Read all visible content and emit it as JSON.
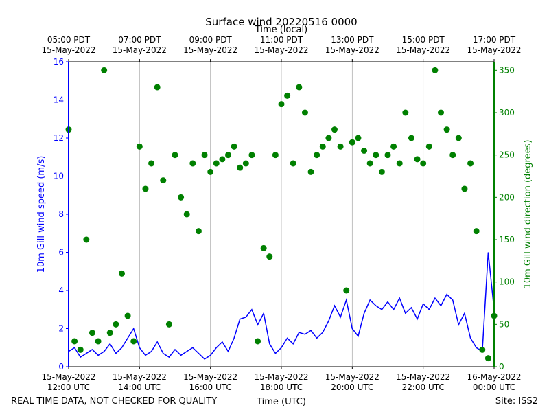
{
  "chart_data": {
    "type": "line",
    "title": "Surface wind 20220516 0000",
    "x2label": "Time (local)",
    "xlabel": "Time (UTC)",
    "ylabel": "10m Gill wind speed (m/s)",
    "y2label": "10m Gill wind direction (degrees)",
    "footer_left": "REAL TIME DATA, NOT CHECKED FOR QUALITY",
    "footer_right": "Site: ISS2",
    "grid": "x",
    "xlim": [
      "2022-05-15 12:00",
      "2022-05-16 00:00"
    ],
    "xticks": [
      {
        "value": "2022-05-15 12:00",
        "label": [
          "15-May-2022",
          "12:00 UTC"
        ]
      },
      {
        "value": "2022-05-15 14:00",
        "label": [
          "15-May-2022",
          "14:00 UTC"
        ]
      },
      {
        "value": "2022-05-15 16:00",
        "label": [
          "15-May-2022",
          "16:00 UTC"
        ]
      },
      {
        "value": "2022-05-15 18:00",
        "label": [
          "15-May-2022",
          "18:00 UTC"
        ]
      },
      {
        "value": "2022-05-15 20:00",
        "label": [
          "15-May-2022",
          "20:00 UTC"
        ]
      },
      {
        "value": "2022-05-15 22:00",
        "label": [
          "15-May-2022",
          "22:00 UTC"
        ]
      },
      {
        "value": "2022-05-16 00:00",
        "label": [
          "16-May-2022",
          "00:00 UTC"
        ]
      }
    ],
    "x2ticks": [
      {
        "value": "2022-05-15 12:00",
        "label": [
          "05:00 PDT",
          "15-May-2022"
        ]
      },
      {
        "value": "2022-05-15 14:00",
        "label": [
          "07:00 PDT",
          "15-May-2022"
        ]
      },
      {
        "value": "2022-05-15 16:00",
        "label": [
          "09:00 PDT",
          "15-May-2022"
        ]
      },
      {
        "value": "2022-05-15 18:00",
        "label": [
          "11:00 PDT",
          "15-May-2022"
        ]
      },
      {
        "value": "2022-05-15 20:00",
        "label": [
          "13:00 PDT",
          "15-May-2022"
        ]
      },
      {
        "value": "2022-05-15 22:00",
        "label": [
          "15:00 PDT",
          "15-May-2022"
        ]
      },
      {
        "value": "2022-05-16 00:00",
        "label": [
          "17:00 PDT",
          "15-May-2022"
        ]
      }
    ],
    "ylim": [
      0,
      16
    ],
    "yticks": [
      0,
      2,
      4,
      6,
      8,
      10,
      12,
      14,
      16
    ],
    "y2lim": [
      0,
      360
    ],
    "y2ticks": [
      0,
      50,
      100,
      150,
      200,
      250,
      300,
      350
    ],
    "x": [
      "2022-05-15 12:00",
      "2022-05-15 12:10",
      "2022-05-15 12:20",
      "2022-05-15 12:30",
      "2022-05-15 12:40",
      "2022-05-15 12:50",
      "2022-05-15 13:00",
      "2022-05-15 13:10",
      "2022-05-15 13:20",
      "2022-05-15 13:30",
      "2022-05-15 13:40",
      "2022-05-15 13:50",
      "2022-05-15 14:00",
      "2022-05-15 14:10",
      "2022-05-15 14:20",
      "2022-05-15 14:30",
      "2022-05-15 14:40",
      "2022-05-15 14:50",
      "2022-05-15 15:00",
      "2022-05-15 15:10",
      "2022-05-15 15:20",
      "2022-05-15 15:30",
      "2022-05-15 15:40",
      "2022-05-15 15:50",
      "2022-05-15 16:00",
      "2022-05-15 16:10",
      "2022-05-15 16:20",
      "2022-05-15 16:30",
      "2022-05-15 16:40",
      "2022-05-15 16:50",
      "2022-05-15 17:00",
      "2022-05-15 17:10",
      "2022-05-15 17:20",
      "2022-05-15 17:30",
      "2022-05-15 17:40",
      "2022-05-15 17:50",
      "2022-05-15 18:00",
      "2022-05-15 18:10",
      "2022-05-15 18:20",
      "2022-05-15 18:30",
      "2022-05-15 18:40",
      "2022-05-15 18:50",
      "2022-05-15 19:00",
      "2022-05-15 19:10",
      "2022-05-15 19:20",
      "2022-05-15 19:30",
      "2022-05-15 19:40",
      "2022-05-15 19:50",
      "2022-05-15 20:00",
      "2022-05-15 20:10",
      "2022-05-15 20:20",
      "2022-05-15 20:30",
      "2022-05-15 20:40",
      "2022-05-15 20:50",
      "2022-05-15 21:00",
      "2022-05-15 21:10",
      "2022-05-15 21:20",
      "2022-05-15 21:30",
      "2022-05-15 21:40",
      "2022-05-15 21:50",
      "2022-05-15 22:00",
      "2022-05-15 22:10",
      "2022-05-15 22:20",
      "2022-05-15 22:30",
      "2022-05-15 22:40",
      "2022-05-15 22:50",
      "2022-05-15 23:00",
      "2022-05-15 23:10",
      "2022-05-15 23:20",
      "2022-05-15 23:30",
      "2022-05-15 23:40",
      "2022-05-15 23:50",
      "2022-05-16 00:00"
    ],
    "series": [
      {
        "name": "10m Gill wind speed",
        "type": "line",
        "color": "#0000ff",
        "axis": "y",
        "values": [
          0.8,
          1.0,
          0.5,
          0.7,
          0.9,
          0.6,
          0.8,
          1.2,
          0.7,
          1.0,
          1.5,
          2.0,
          1.0,
          0.6,
          0.8,
          1.3,
          0.7,
          0.5,
          0.9,
          0.6,
          0.8,
          1.0,
          0.7,
          0.4,
          0.6,
          1.0,
          1.3,
          0.8,
          1.5,
          2.5,
          2.6,
          3.0,
          2.2,
          2.8,
          1.2,
          0.7,
          1.0,
          1.5,
          1.2,
          1.8,
          1.7,
          1.9,
          1.5,
          1.8,
          2.4,
          3.2,
          2.6,
          3.5,
          2.0,
          1.6,
          2.8,
          3.5,
          3.2,
          3.0,
          3.4,
          3.0,
          3.6,
          2.8,
          3.1,
          2.5,
          3.3,
          3.0,
          3.6,
          3.2,
          3.8,
          3.5,
          2.2,
          2.8,
          1.5,
          1.0,
          0.8,
          6.0,
          3.0
        ]
      },
      {
        "name": "10m Gill wind direction",
        "type": "scatter",
        "color": "#008000",
        "axis": "y2",
        "values": [
          280,
          30,
          20,
          150,
          40,
          30,
          350,
          40,
          50,
          110,
          60,
          30,
          260,
          210,
          240,
          330,
          220,
          50,
          250,
          200,
          180,
          240,
          160,
          250,
          230,
          240,
          245,
          250,
          260,
          235,
          240,
          250,
          30,
          140,
          130,
          250,
          310,
          320,
          240,
          330,
          300,
          230,
          250,
          260,
          270,
          280,
          260,
          90,
          265,
          270,
          255,
          240,
          250,
          230,
          250,
          260,
          240,
          300,
          270,
          245,
          240,
          260,
          350,
          300,
          280,
          250,
          270,
          210,
          240,
          160,
          20,
          10,
          60
        ]
      }
    ]
  }
}
